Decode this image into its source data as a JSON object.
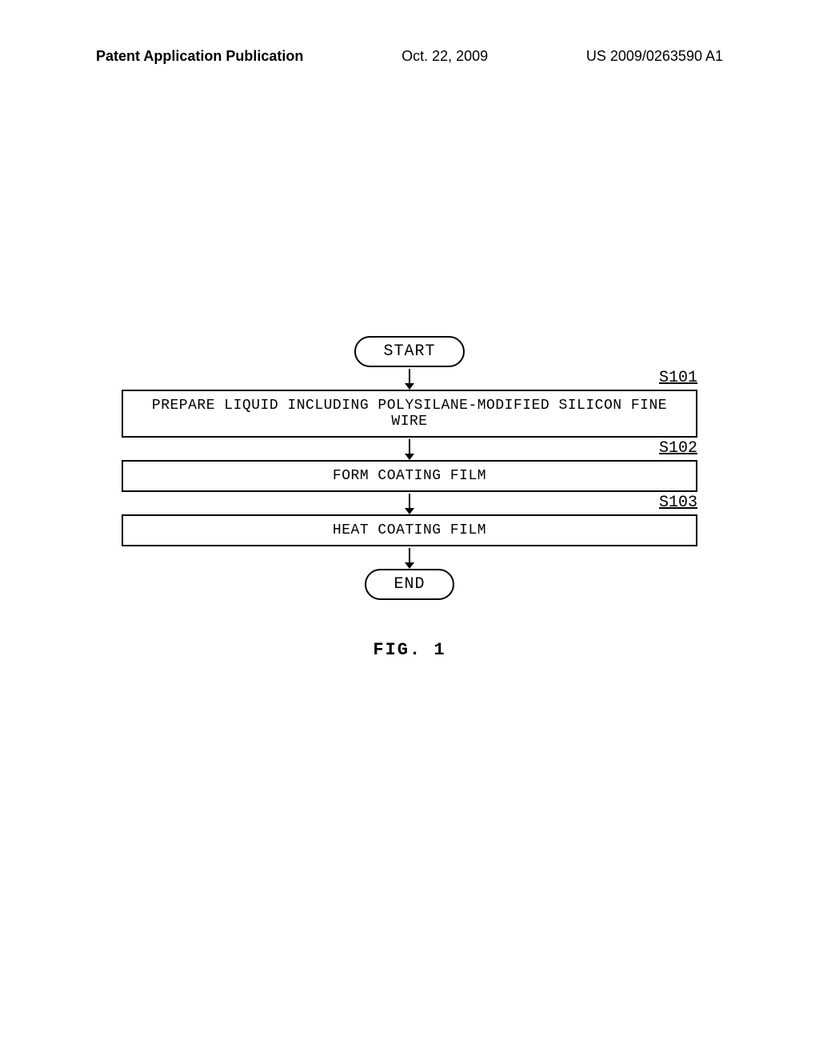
{
  "header": {
    "left": "Patent Application Publication",
    "center": "Oct. 22, 2009",
    "right": "US 2009/0263590 A1"
  },
  "flowchart": {
    "type": "flowchart",
    "start_label": "START",
    "end_label": "END",
    "figure_label": "FIG. 1",
    "steps": [
      {
        "id": "S101",
        "text": "PREPARE LIQUID INCLUDING POLYSILANE-MODIFIED SILICON FINE WIRE"
      },
      {
        "id": "S102",
        "text": "FORM COATING FILM"
      },
      {
        "id": "S103",
        "text": "HEAT COATING FILM"
      }
    ],
    "colors": {
      "background": "#ffffff",
      "border": "#000000",
      "text": "#000000"
    },
    "terminal_border_radius": 24,
    "box_border_width": 2,
    "font_family": "Courier New",
    "font_size": 18
  }
}
